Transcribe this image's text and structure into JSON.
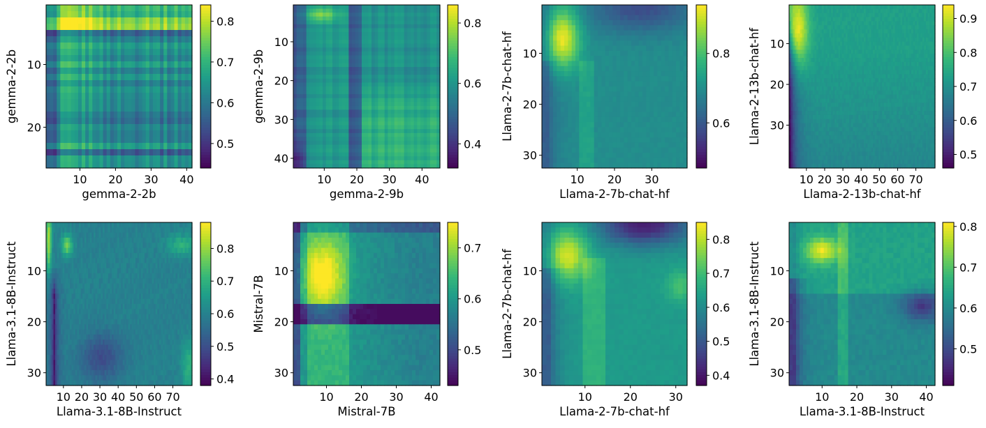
{
  "chart_data": [
    {
      "type": "heatmap",
      "pattern": "gemma2b",
      "xlabel": "gemma-2-2b",
      "ylabel": "gemma-2-2b",
      "n_cols": 41,
      "n_rows": 26,
      "xticks": [
        {
          "v": 10,
          "label": "10"
        },
        {
          "v": 20,
          "label": "20"
        },
        {
          "v": 30,
          "label": "30"
        },
        {
          "v": 40,
          "label": "40"
        }
      ],
      "yticks": [
        {
          "v": 10,
          "label": "10"
        },
        {
          "v": 20,
          "label": "20"
        }
      ],
      "clim": [
        0.44,
        0.84
      ],
      "cbar_ticks": [
        {
          "v": 0.5,
          "label": "0.5"
        },
        {
          "v": 0.6,
          "label": "0.6"
        },
        {
          "v": 0.7,
          "label": "0.7"
        },
        {
          "v": 0.8,
          "label": "0.8"
        }
      ]
    },
    {
      "type": "heatmap",
      "pattern": "gemma9b",
      "xlabel": "gemma-2-9b",
      "ylabel": "gemma-2-9b",
      "n_cols": 45,
      "n_rows": 42,
      "xticks": [
        {
          "v": 10,
          "label": "10"
        },
        {
          "v": 20,
          "label": "20"
        },
        {
          "v": 30,
          "label": "30"
        },
        {
          "v": 40,
          "label": "40"
        }
      ],
      "yticks": [
        {
          "v": 10,
          "label": "10"
        },
        {
          "v": 20,
          "label": "20"
        },
        {
          "v": 30,
          "label": "30"
        },
        {
          "v": 40,
          "label": "40"
        }
      ],
      "clim": [
        0.32,
        0.86
      ],
      "cbar_ticks": [
        {
          "v": 0.4,
          "label": "0.4"
        },
        {
          "v": 0.6,
          "label": "0.6"
        },
        {
          "v": 0.8,
          "label": "0.8"
        }
      ]
    },
    {
      "type": "heatmap",
      "pattern": "llama7b_a",
      "xlabel": "Llama-2-7b-chat-hf",
      "ylabel": "Llama-2-7b-chat-hf",
      "n_cols": 39,
      "n_rows": 32,
      "xticks": [
        {
          "v": 10,
          "label": "10"
        },
        {
          "v": 20,
          "label": "20"
        },
        {
          "v": 30,
          "label": "30"
        }
      ],
      "yticks": [
        {
          "v": 10,
          "label": "10"
        },
        {
          "v": 20,
          "label": "20"
        },
        {
          "v": 30,
          "label": "30"
        }
      ],
      "clim": [
        0.47,
        0.94
      ],
      "cbar_ticks": [
        {
          "v": 0.6,
          "label": "0.6"
        },
        {
          "v": 0.8,
          "label": "0.8"
        }
      ]
    },
    {
      "type": "heatmap",
      "pattern": "llama13b",
      "xlabel": "Llama-2-13b-chat-hf",
      "ylabel": "Llama-2-13b-chat-hf",
      "n_cols": 80,
      "n_rows": 40,
      "xticks": [
        {
          "v": 10,
          "label": "10"
        },
        {
          "v": 20,
          "label": "20"
        },
        {
          "v": 30,
          "label": "30"
        },
        {
          "v": 40,
          "label": "40"
        },
        {
          "v": 50,
          "label": "50"
        },
        {
          "v": 60,
          "label": "60"
        },
        {
          "v": 70,
          "label": "70"
        }
      ],
      "yticks": [
        {
          "v": 10,
          "label": "10"
        },
        {
          "v": 20,
          "label": "20"
        },
        {
          "v": 30,
          "label": "30"
        }
      ],
      "clim": [
        0.46,
        0.94
      ],
      "cbar_ticks": [
        {
          "v": 0.5,
          "label": "0.5"
        },
        {
          "v": 0.6,
          "label": "0.6"
        },
        {
          "v": 0.7,
          "label": "0.7"
        },
        {
          "v": 0.8,
          "label": "0.8"
        },
        {
          "v": 0.9,
          "label": "0.9"
        }
      ]
    },
    {
      "type": "heatmap",
      "pattern": "llama31_a",
      "xlabel": "Llama-3.1-8B-Instruct",
      "ylabel": "Llama-3.1-8B-Instruct",
      "n_cols": 80,
      "n_rows": 32,
      "xticks": [
        {
          "v": 10,
          "label": "10"
        },
        {
          "v": 20,
          "label": "20"
        },
        {
          "v": 30,
          "label": "30"
        },
        {
          "v": 40,
          "label": "40"
        },
        {
          "v": 50,
          "label": "50"
        },
        {
          "v": 60,
          "label": "60"
        },
        {
          "v": 70,
          "label": "70"
        }
      ],
      "yticks": [
        {
          "v": 10,
          "label": "10"
        },
        {
          "v": 20,
          "label": "20"
        },
        {
          "v": 30,
          "label": "30"
        }
      ],
      "clim": [
        0.38,
        0.88
      ],
      "cbar_ticks": [
        {
          "v": 0.4,
          "label": "0.4"
        },
        {
          "v": 0.5,
          "label": "0.5"
        },
        {
          "v": 0.6,
          "label": "0.6"
        },
        {
          "v": 0.7,
          "label": "0.7"
        },
        {
          "v": 0.8,
          "label": "0.8"
        }
      ]
    },
    {
      "type": "heatmap",
      "pattern": "mistral",
      "xlabel": "Mistral-7B",
      "ylabel": "Mistral-7B",
      "n_cols": 42,
      "n_rows": 32,
      "xticks": [
        {
          "v": 10,
          "label": "10"
        },
        {
          "v": 20,
          "label": "20"
        },
        {
          "v": 30,
          "label": "30"
        },
        {
          "v": 40,
          "label": "40"
        }
      ],
      "yticks": [
        {
          "v": 10,
          "label": "10"
        },
        {
          "v": 20,
          "label": "20"
        },
        {
          "v": 30,
          "label": "30"
        }
      ],
      "clim": [
        0.43,
        0.75
      ],
      "cbar_ticks": [
        {
          "v": 0.5,
          "label": "0.5"
        },
        {
          "v": 0.6,
          "label": "0.6"
        },
        {
          "v": 0.7,
          "label": "0.7"
        }
      ]
    },
    {
      "type": "heatmap",
      "pattern": "llama7b_b",
      "xlabel": "Llama-2-7b-chat-hf",
      "ylabel": "Llama-2-7b-chat-hf",
      "n_cols": 32,
      "n_rows": 32,
      "xticks": [
        {
          "v": 10,
          "label": "10"
        },
        {
          "v": 20,
          "label": "20"
        },
        {
          "v": 30,
          "label": "30"
        }
      ],
      "yticks": [
        {
          "v": 10,
          "label": "10"
        },
        {
          "v": 20,
          "label": "20"
        },
        {
          "v": 30,
          "label": "30"
        }
      ],
      "clim": [
        0.37,
        0.85
      ],
      "cbar_ticks": [
        {
          "v": 0.4,
          "label": "0.4"
        },
        {
          "v": 0.5,
          "label": "0.5"
        },
        {
          "v": 0.6,
          "label": "0.6"
        },
        {
          "v": 0.7,
          "label": "0.7"
        },
        {
          "v": 0.8,
          "label": "0.8"
        }
      ]
    },
    {
      "type": "heatmap",
      "pattern": "llama31_b",
      "xlabel": "Llama-3.1-8B-Instruct",
      "ylabel": "Llama-3.1-8B-Instruct",
      "n_cols": 42,
      "n_rows": 32,
      "xticks": [
        {
          "v": 10,
          "label": "10"
        },
        {
          "v": 20,
          "label": "20"
        },
        {
          "v": 30,
          "label": "30"
        },
        {
          "v": 40,
          "label": "40"
        }
      ],
      "yticks": [
        {
          "v": 10,
          "label": "10"
        },
        {
          "v": 20,
          "label": "20"
        },
        {
          "v": 30,
          "label": "30"
        }
      ],
      "clim": [
        0.41,
        0.81
      ],
      "cbar_ticks": [
        {
          "v": 0.5,
          "label": "0.5"
        },
        {
          "v": 0.6,
          "label": "0.6"
        },
        {
          "v": 0.7,
          "label": "0.7"
        },
        {
          "v": 0.8,
          "label": "0.8"
        }
      ]
    }
  ]
}
